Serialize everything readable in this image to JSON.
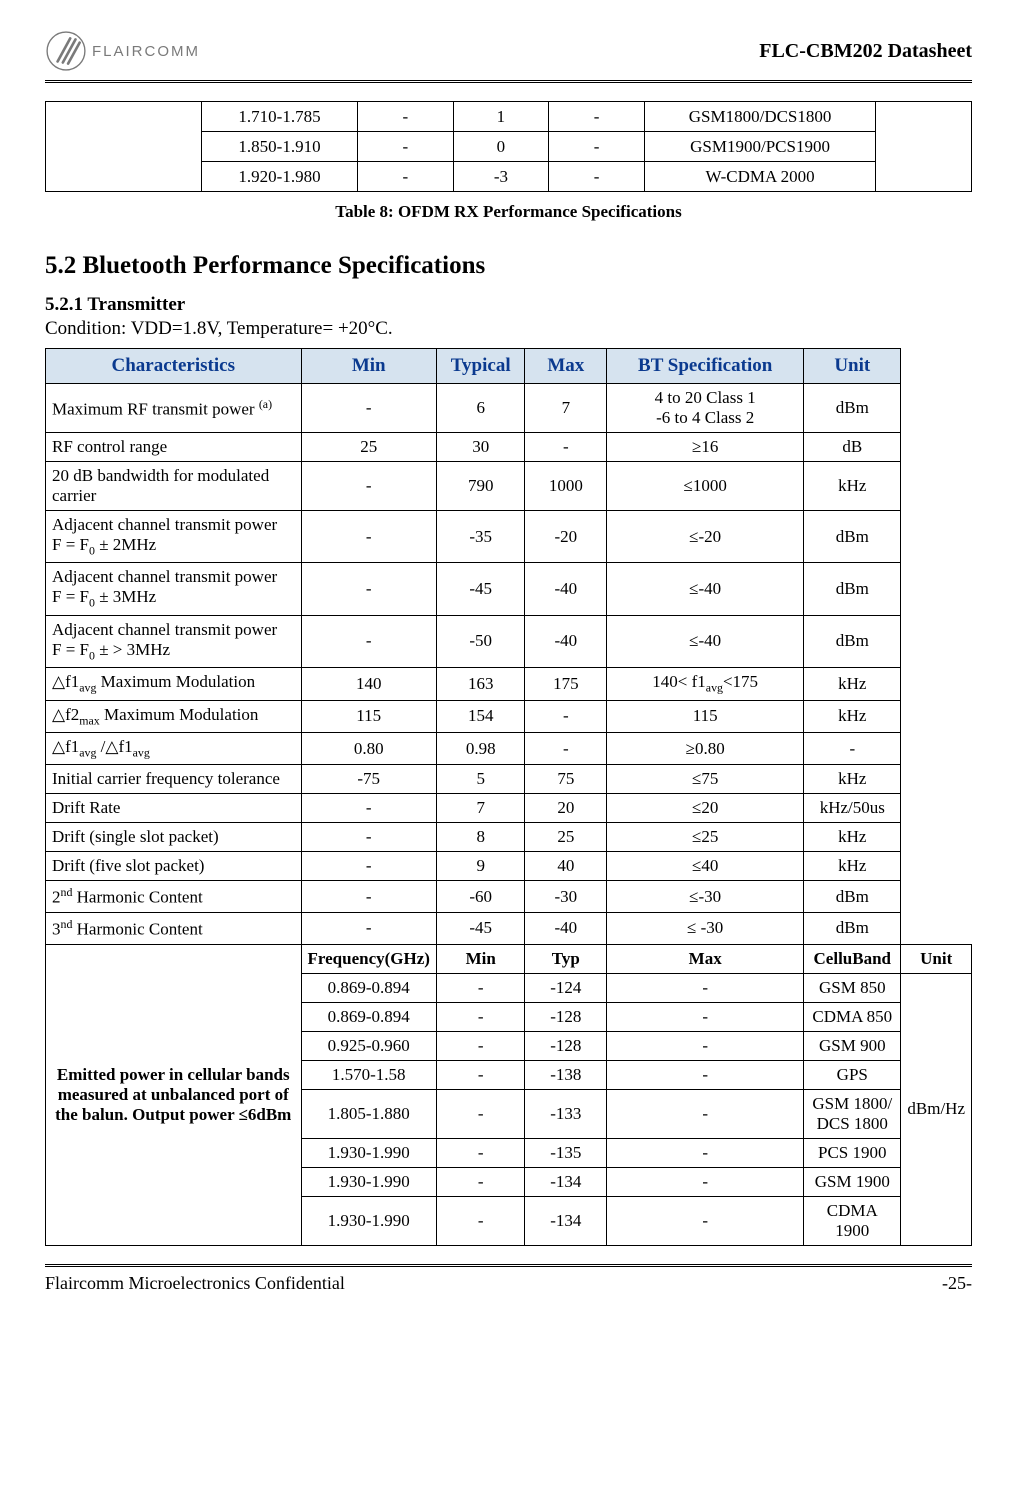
{
  "header": {
    "logo_text": "FLAIRCOMM",
    "doc_title": "FLC-CBM202 Datasheet"
  },
  "table8": {
    "rows": [
      {
        "freq": "1.710-1.785",
        "min": "-",
        "typ": "1",
        "max": "-",
        "band": "GSM1800/DCS1800"
      },
      {
        "freq": "1.850-1.910",
        "min": "-",
        "typ": "0",
        "max": "-",
        "band": "GSM1900/PCS1900"
      },
      {
        "freq": "1.920-1.980",
        "min": "-",
        "typ": "-3",
        "max": "-",
        "band": "W-CDMA 2000"
      }
    ],
    "caption": "Table 8: OFDM RX Performance Specifications"
  },
  "section": {
    "heading": "5.2  Bluetooth Performance Specifications",
    "sub_heading": "5.2.1  Transmitter",
    "condition": "Condition: VDD=1.8V, Temperature= +20°C."
  },
  "bt_table": {
    "headers": {
      "char": "Characteristics",
      "min": "Min",
      "typ": "Typical",
      "max": "Max",
      "spec": "BT Specification",
      "unit": "Unit"
    },
    "rows": [
      {
        "char_html": "Maximum RF transmit power <sup>(a)</sup>",
        "min": "-",
        "typ": "6",
        "max": "7",
        "spec_html": "4 to 20  Class 1<br>-6 to 4  Class 2",
        "unit": "dBm"
      },
      {
        "char_html": "RF control range",
        "min": "25",
        "typ": "30",
        "max": "-",
        "spec_html": "≥16",
        "unit": "dB"
      },
      {
        "char_html": "20 dB bandwidth for modulated carrier",
        "min": "-",
        "typ": "790",
        "max": "1000",
        "spec_html": "≤1000",
        "unit": "kHz"
      },
      {
        "char_html": "Adjacent channel transmit power<br>F = F<sub>0</sub> ± 2MHz",
        "min": "-",
        "typ": "-35",
        "max": "-20",
        "spec_html": "≤-20",
        "unit": "dBm"
      },
      {
        "char_html": "Adjacent channel transmit power<br>F = F<sub>0</sub> ± 3MHz",
        "min": "-",
        "typ": "-45",
        "max": "-40",
        "spec_html": "≤-40",
        "unit": "dBm"
      },
      {
        "char_html": "Adjacent channel transmit power<br>F = F<sub>0</sub> ± &gt; 3MHz",
        "min": "-",
        "typ": "-50",
        "max": "-40",
        "spec_html": "≤-40",
        "unit": "dBm"
      },
      {
        "char_html": "△f1<sub>avg</sub> Maximum Modulation",
        "min": "140",
        "typ": "163",
        "max": "175",
        "spec_html": "140&lt; f1<sub>avg</sub>&lt;175",
        "unit": "kHz"
      },
      {
        "char_html": "△f2<sub>max</sub> Maximum Modulation",
        "min": "115",
        "typ": "154",
        "max": "-",
        "spec_html": "115",
        "unit": "kHz"
      },
      {
        "char_html": "△f1<sub>avg</sub> /△f1<sub>avg</sub>",
        "min": "0.80",
        "typ": "0.98",
        "max": "-",
        "spec_html": "≥0.80",
        "unit": "-"
      },
      {
        "char_html": "Initial carrier frequency tolerance",
        "min": "-75",
        "typ": "5",
        "max": "75",
        "spec_html": "≤75",
        "unit": "kHz"
      },
      {
        "char_html": "Drift Rate",
        "min": "-",
        "typ": "7",
        "max": "20",
        "spec_html": "≤20",
        "unit": "kHz/50us"
      },
      {
        "char_html": "Drift (single slot packet)",
        "min": "-",
        "typ": "8",
        "max": "25",
        "spec_html": "≤25",
        "unit": "kHz"
      },
      {
        "char_html": "Drift (five slot packet)",
        "min": "-",
        "typ": "9",
        "max": "40",
        "spec_html": "≤40",
        "unit": "kHz"
      },
      {
        "char_html": "2<sup>nd</sup> Harmonic Content",
        "min": "-",
        "typ": "-60",
        "max": "-30",
        "spec_html": "≤-30",
        "unit": "dBm"
      },
      {
        "char_html": "3<sup>nd</sup> Harmonic Content",
        "min": "-",
        "typ": "-45",
        "max": "-40",
        "spec_html": "≤ -30",
        "unit": "dBm"
      }
    ],
    "cell_block": {
      "left_label": "Emitted power in cellular bands measured at unbalanced port of  the balun. Output power ≤6dBm",
      "sub_headers": {
        "freq": "Frequency(GHz)",
        "min": "Min",
        "typ": "Typ",
        "max": "Max",
        "band": "CelluBand",
        "unit": "Unit"
      },
      "unit": "dBm/Hz",
      "rows": [
        {
          "freq": "0.869-0.894",
          "min": "-",
          "typ": "-124",
          "max": "-",
          "band": "GSM 850"
        },
        {
          "freq": "0.869-0.894",
          "min": "-",
          "typ": "-128",
          "max": "-",
          "band": "CDMA 850"
        },
        {
          "freq": "0.925-0.960",
          "min": "-",
          "typ": "-128",
          "max": "-",
          "band": "GSM 900"
        },
        {
          "freq": "1.570-1.58",
          "min": "-",
          "typ": "-138",
          "max": "-",
          "band": "GPS"
        },
        {
          "freq": "1.805-1.880",
          "min": "-",
          "typ": "-133",
          "max": "-",
          "band": "GSM 1800/ DCS 1800"
        },
        {
          "freq": "1.930-1.990",
          "min": "-",
          "typ": "-135",
          "max": "-",
          "band": "PCS 1900"
        },
        {
          "freq": "1.930-1.990",
          "min": "-",
          "typ": "-134",
          "max": "-",
          "band": "GSM 1900"
        },
        {
          "freq": "1.930-1.990",
          "min": "-",
          "typ": "-134",
          "max": "-",
          "band": "CDMA 1900"
        }
      ]
    }
  },
  "footer": {
    "left": "Flaircomm Microelectronics Confidential",
    "right": "-25-"
  },
  "styling": {
    "header_bg": "#d6e3ef",
    "header_color": "#0b3a8f",
    "border_color": "#000000",
    "text_color": "#000000",
    "logo_gray": "#7a7a7a"
  }
}
